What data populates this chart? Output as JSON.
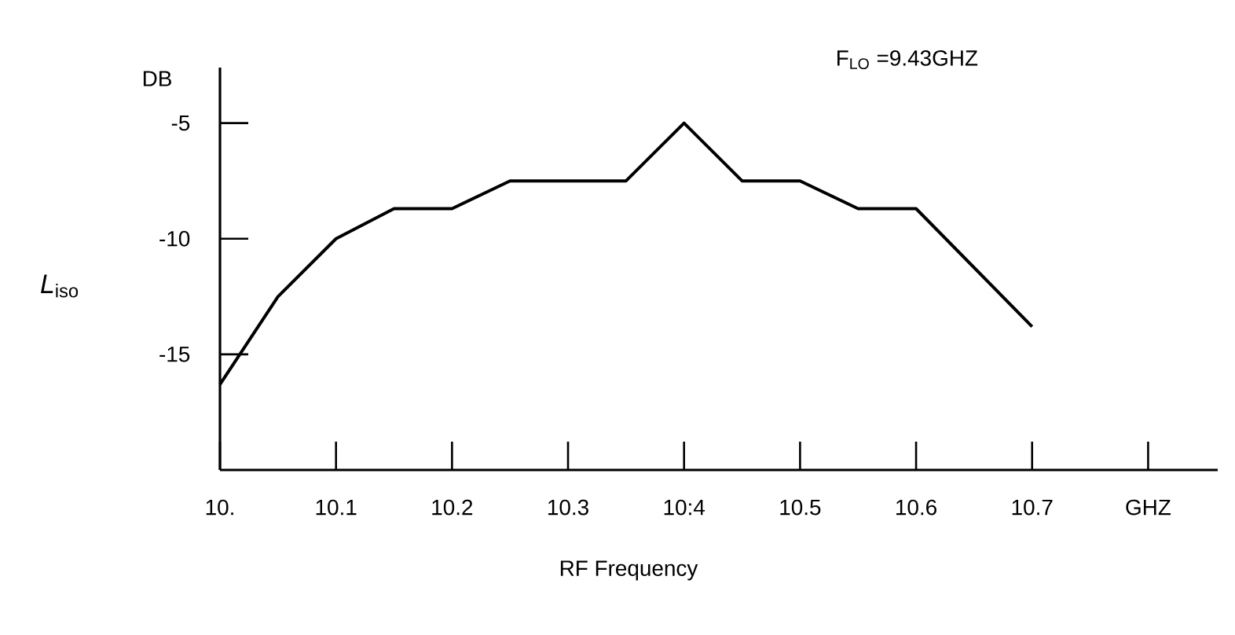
{
  "chart_data": {
    "type": "line",
    "xlabel": "RF Frequency",
    "ylabel": "*L*$_{iso}$",
    "annotations": [
      "DB",
      "F$_{LO}$ =9.43GHZ"
    ],
    "series": [
      {
        "color": "#000000",
        "x": [
          10.0,
          10.05,
          10.1,
          10.15,
          10.2,
          10.25,
          10.35,
          10.4,
          10.45,
          10.5,
          10.55,
          10.6,
          10.7
        ],
        "values": [
          -16.3,
          -12.5,
          -10,
          -8.7,
          -8.7,
          -7.5,
          -7.5,
          -5,
          -7.5,
          -7.5,
          -8.7,
          -8.7,
          -13.8
        ]
      }
    ],
    "xlim": [
      10.0,
      10.86
    ],
    "ylim": [
      -20,
      -2.6
    ],
    "xticks": [
      {
        "value": 10.0,
        "label": "10."
      },
      10.1,
      10.2,
      10.3,
      {
        "value": 10.4,
        "label": "10:4"
      },
      10.5,
      10.6,
      10.7,
      {
        "value": 10.8,
        "label": "GHZ"
      }
    ],
    "yticks": [
      -15,
      -10,
      -5
    ],
    "marker": "none",
    "line_style": "solid",
    "grid": false
  }
}
